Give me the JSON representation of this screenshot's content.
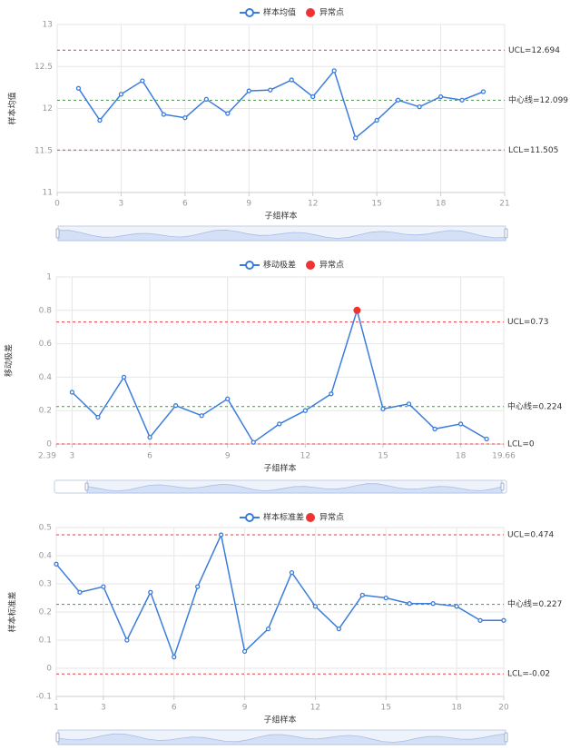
{
  "colors": {
    "series": "#3b7ddd",
    "anomaly": "#ee3333",
    "limit": "#d64545",
    "center": "#3aa03a",
    "grid": "#e6e6e6",
    "axis": "#cccccc",
    "tick": "#999999",
    "label": "#333333",
    "zoom_bg": "#eef3fb",
    "zoom_fill": "#d4e0f5",
    "zoom_border": "#c4cee0"
  },
  "chart_data": [
    {
      "type": "line",
      "legend": {
        "series_label": "样本均值",
        "anomaly_label": "异常点"
      },
      "xlabel": "子组样本",
      "ylabel": "样本均值",
      "xlim": [
        0,
        21
      ],
      "ylim": [
        11,
        13
      ],
      "xticks": [
        "0",
        "3",
        "6",
        "9",
        "12",
        "15",
        "18",
        "21"
      ],
      "yticks": [
        "11",
        "11.5",
        "12",
        "12.5",
        "13"
      ],
      "x": [
        1,
        2,
        3,
        4,
        5,
        6,
        7,
        8,
        9,
        10,
        11,
        12,
        13,
        14,
        15,
        16,
        17,
        18,
        19,
        20
      ],
      "values": [
        12.24,
        11.86,
        12.17,
        12.33,
        11.93,
        11.89,
        12.11,
        11.94,
        12.21,
        12.22,
        12.34,
        12.14,
        12.45,
        11.65,
        11.86,
        12.1,
        12.02,
        12.14,
        12.1,
        12.2
      ],
      "anomalies": [],
      "lines": {
        "ucl": 12.694,
        "center": 12.099,
        "lcl": 11.505
      },
      "line_labels": {
        "ucl": "UCL=12.694",
        "center": "中心线=12.099",
        "lcl": "LCL=11.505"
      },
      "grid": true
    },
    {
      "type": "line",
      "legend": {
        "series_label": "移动极差",
        "anomaly_label": "异常点"
      },
      "xlabel": "子组样本",
      "ylabel": "移动极差",
      "xlim": [
        2.39,
        19.66
      ],
      "ylim": [
        0,
        1
      ],
      "xticks": [
        "2.39",
        "3",
        "6",
        "9",
        "12",
        "15",
        "18",
        "19.66"
      ],
      "yticks": [
        "0",
        "0.2",
        "0.4",
        "0.6",
        "0.8",
        "1"
      ],
      "x": [
        3,
        4,
        5,
        6,
        7,
        8,
        9,
        10,
        11,
        12,
        13,
        14,
        15,
        16,
        17,
        18,
        19
      ],
      "values": [
        0.31,
        0.16,
        0.4,
        0.04,
        0.23,
        0.17,
        0.27,
        0.01,
        0.12,
        0.2,
        0.3,
        0.8,
        0.21,
        0.24,
        0.09,
        0.12,
        0.03
      ],
      "anomalies": [
        14
      ],
      "lines": {
        "ucl": 0.73,
        "center": 0.224,
        "lcl": 0
      },
      "line_labels": {
        "ucl": "UCL=0.73",
        "center": "中心线=0.224",
        "lcl": "LCL=0"
      },
      "grid": true
    },
    {
      "type": "line",
      "legend": {
        "series_label": "样本标准差",
        "anomaly_label": "异常点"
      },
      "xlabel": "子组样本",
      "ylabel": "样本标准差",
      "xlim": [
        1,
        20
      ],
      "ylim": [
        -0.1,
        0.5
      ],
      "xticks": [
        "1",
        "3",
        "6",
        "9",
        "12",
        "15",
        "18",
        "20"
      ],
      "yticks": [
        "-0.1",
        "0",
        "0.1",
        "0.2",
        "0.3",
        "0.4",
        "0.5"
      ],
      "x": [
        1,
        2,
        3,
        4,
        5,
        6,
        7,
        8,
        9,
        10,
        11,
        12,
        13,
        14,
        15,
        16,
        17,
        18,
        19,
        20
      ],
      "values": [
        0.37,
        0.27,
        0.29,
        0.1,
        0.27,
        0.04,
        0.29,
        0.474,
        0.06,
        0.14,
        0.34,
        0.22,
        0.14,
        0.26,
        0.25,
        0.23,
        0.23,
        0.22,
        0.17,
        0.17
      ],
      "anomalies": [],
      "lines": {
        "ucl": 0.474,
        "center": 0.227,
        "lcl": -0.02
      },
      "line_labels": {
        "ucl": "UCL=0.474",
        "center": "中心线=0.227",
        "lcl": "LCL=-0.02"
      },
      "grid": true
    }
  ]
}
